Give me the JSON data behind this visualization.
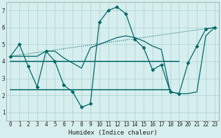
{
  "xlabel": "Humidex (Indice chaleur)",
  "xlim": [
    -0.5,
    23.5
  ],
  "ylim": [
    0.5,
    7.5
  ],
  "xticks": [
    0,
    1,
    2,
    3,
    4,
    5,
    6,
    7,
    8,
    9,
    10,
    11,
    12,
    13,
    14,
    15,
    16,
    17,
    18,
    19,
    20,
    21,
    22,
    23
  ],
  "yticks": [
    1,
    2,
    3,
    4,
    5,
    6,
    7
  ],
  "bg_color": "#d6eeee",
  "line_color": "#006666",
  "grid_color": "#b0d4d4",
  "lines": [
    {
      "x": [
        0,
        1,
        2,
        3,
        4,
        5,
        6,
        7,
        8,
        9,
        10,
        11,
        12,
        13,
        14,
        15,
        16,
        17,
        18,
        19,
        20,
        21,
        22,
        23
      ],
      "y": [
        4.3,
        5.0,
        3.7,
        2.5,
        4.6,
        4.0,
        2.6,
        2.2,
        1.3,
        1.5,
        6.3,
        7.0,
        7.2,
        6.8,
        5.3,
        4.8,
        3.5,
        3.8,
        2.2,
        2.1,
        3.9,
        4.9,
        5.9,
        6.0
      ],
      "marker": "D",
      "markersize": 2.5,
      "linewidth": 0.9,
      "linestyle": "solid"
    },
    {
      "x": [
        0,
        1,
        2,
        3,
        4,
        5,
        6,
        7,
        8,
        9,
        10,
        11,
        12,
        13,
        14,
        15,
        16,
        17,
        18,
        19,
        20,
        21,
        22,
        23
      ],
      "y": [
        4.3,
        4.3,
        4.3,
        4.3,
        4.6,
        4.6,
        4.2,
        3.9,
        3.6,
        4.8,
        5.0,
        5.2,
        5.4,
        5.5,
        5.4,
        5.2,
        4.9,
        4.7,
        2.2,
        2.1,
        2.1,
        2.2,
        5.5,
        6.0
      ],
      "marker": null,
      "markersize": 0,
      "linewidth": 0.9,
      "linestyle": "solid"
    },
    {
      "x": [
        0,
        19
      ],
      "y": [
        4.0,
        4.0
      ],
      "marker": null,
      "markersize": 0,
      "linewidth": 1.1,
      "linestyle": "solid"
    },
    {
      "x": [
        0,
        18
      ],
      "y": [
        2.35,
        2.35
      ],
      "marker": null,
      "markersize": 0,
      "linewidth": 1.1,
      "linestyle": "solid"
    },
    {
      "x": [
        0,
        23
      ],
      "y": [
        4.3,
        6.0
      ],
      "marker": null,
      "markersize": 0,
      "linewidth": 0.8,
      "linestyle": "dotted"
    }
  ]
}
